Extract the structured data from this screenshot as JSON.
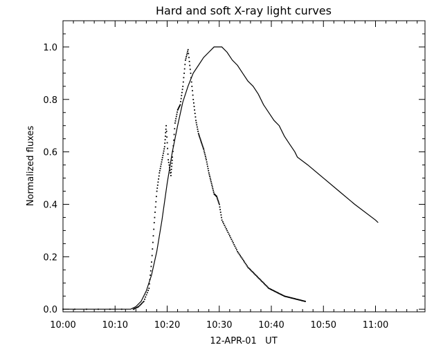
{
  "chart_data": {
    "type": "line",
    "title": "Hard and soft X-ray light curves",
    "xlabel": "12-APR-01   UT",
    "ylabel": "Normalized fluxes",
    "xlim": [
      0,
      69.5
    ],
    "ylim": [
      -0.01,
      1.1
    ],
    "x_unit": "minutes after 10:00 UT",
    "x_ticks": [
      {
        "value": 0,
        "label": "10:00"
      },
      {
        "value": 10,
        "label": "10:10"
      },
      {
        "value": 20,
        "label": "10:20"
      },
      {
        "value": 30,
        "label": "10:30"
      },
      {
        "value": 40,
        "label": "10:40"
      },
      {
        "value": 50,
        "label": "10:50"
      },
      {
        "value": 60,
        "label": "11:00"
      }
    ],
    "y_ticks": [
      {
        "value": 0.0,
        "label": "0.0"
      },
      {
        "value": 0.2,
        "label": "0.2"
      },
      {
        "value": 0.4,
        "label": "0.4"
      },
      {
        "value": 0.6,
        "label": "0.6"
      },
      {
        "value": 0.8,
        "label": "0.8"
      },
      {
        "value": 1.0,
        "label": "1.0"
      }
    ],
    "grid": false,
    "series": [
      {
        "style": "line",
        "points": [
          [
            0,
            0.0
          ],
          [
            13.0,
            0.0
          ],
          [
            14.0,
            0.01
          ],
          [
            15.0,
            0.03
          ],
          [
            16.0,
            0.07
          ],
          [
            17.0,
            0.13
          ],
          [
            18.0,
            0.22
          ],
          [
            19.0,
            0.34
          ],
          [
            20.0,
            0.48
          ],
          [
            21.0,
            0.6
          ],
          [
            22.0,
            0.7
          ],
          [
            23.0,
            0.79
          ],
          [
            24.0,
            0.85
          ],
          [
            25.0,
            0.9
          ],
          [
            26.0,
            0.93
          ],
          [
            27.0,
            0.96
          ],
          [
            28.0,
            0.98
          ],
          [
            29.0,
            1.0
          ],
          [
            30.5,
            1.0
          ],
          [
            31.5,
            0.98
          ],
          [
            32.5,
            0.95
          ],
          [
            33.5,
            0.93
          ],
          [
            34.5,
            0.9
          ],
          [
            35.5,
            0.87
          ],
          [
            36.5,
            0.85
          ],
          [
            37.5,
            0.82
          ],
          [
            38.5,
            0.78
          ],
          [
            39.5,
            0.75
          ],
          [
            40.5,
            0.72
          ],
          [
            41.5,
            0.7
          ],
          [
            42.5,
            0.66
          ],
          [
            43.5,
            0.63
          ],
          [
            44.5,
            0.6
          ],
          [
            45.0,
            0.58
          ],
          [
            47.0,
            0.55
          ],
          [
            50.0,
            0.5
          ],
          [
            53.0,
            0.45
          ],
          [
            56.0,
            0.4
          ],
          [
            60.0,
            0.34
          ],
          [
            60.5,
            0.33
          ]
        ]
      },
      {
        "style": "dots",
        "points": [
          [
            0,
            0.0
          ],
          [
            13.5,
            0.0
          ],
          [
            14.5,
            0.01
          ],
          [
            15.5,
            0.03
          ],
          [
            16.5,
            0.08
          ],
          [
            17.0,
            0.18
          ],
          [
            17.5,
            0.33
          ],
          [
            18.0,
            0.45
          ],
          [
            18.5,
            0.52
          ],
          [
            19.0,
            0.57
          ],
          [
            19.5,
            0.62
          ],
          [
            19.8,
            0.7
          ],
          [
            20.2,
            0.57
          ],
          [
            20.7,
            0.51
          ],
          [
            21.0,
            0.58
          ],
          [
            21.5,
            0.71
          ],
          [
            22.0,
            0.76
          ],
          [
            22.5,
            0.78
          ],
          [
            23.0,
            0.85
          ],
          [
            23.5,
            0.95
          ],
          [
            24.0,
            0.99
          ],
          [
            24.5,
            0.9
          ],
          [
            25.0,
            0.8
          ],
          [
            25.5,
            0.72
          ],
          [
            26.0,
            0.67
          ],
          [
            26.5,
            0.64
          ],
          [
            27.0,
            0.61
          ],
          [
            27.5,
            0.57
          ],
          [
            28.0,
            0.52
          ],
          [
            28.5,
            0.48
          ],
          [
            29.0,
            0.44
          ],
          [
            29.5,
            0.43
          ],
          [
            30.0,
            0.4
          ],
          [
            30.5,
            0.34
          ],
          [
            31.5,
            0.3
          ],
          [
            32.5,
            0.26
          ],
          [
            33.5,
            0.22
          ],
          [
            34.5,
            0.19
          ],
          [
            35.5,
            0.16
          ],
          [
            36.5,
            0.14
          ],
          [
            37.5,
            0.12
          ],
          [
            38.5,
            0.1
          ],
          [
            39.5,
            0.08
          ],
          [
            40.5,
            0.07
          ],
          [
            41.5,
            0.06
          ],
          [
            42.5,
            0.05
          ],
          [
            43.5,
            0.045
          ],
          [
            44.5,
            0.04
          ],
          [
            45.5,
            0.035
          ],
          [
            46.5,
            0.03
          ]
        ]
      }
    ]
  }
}
